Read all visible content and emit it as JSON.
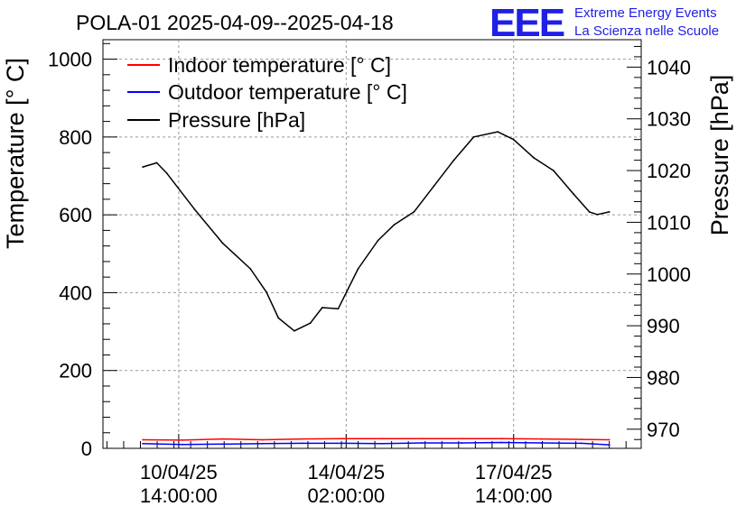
{
  "header": {
    "title": "POLA-01 2025-04-09--2025-04-18",
    "logo_text": "EEE",
    "logo_line1": "Extreme Energy Events",
    "logo_line2": "La Scienza nelle Scuole",
    "logo_color": "#1f1fe6"
  },
  "chart_data": {
    "type": "line",
    "title": "POLA-01 2025-04-09--2025-04-18",
    "xlabel": "",
    "ylabel": "Temperature [° C]",
    "y2label": "Pressure [hPa]",
    "x_ticks": [
      {
        "label_date": "10/04/25",
        "label_time": "14:00:00",
        "t": 38
      },
      {
        "label_date": "14/04/25",
        "label_time": "02:00:00",
        "t": 122
      },
      {
        "label_date": "17/04/25",
        "label_time": "14:00:00",
        "t": 206
      }
    ],
    "xlim": [
      0,
      270
    ],
    "ylim": [
      0,
      1050
    ],
    "y_ticks": [
      0,
      200,
      400,
      600,
      800,
      1000
    ],
    "y2lim": [
      966.3,
      1045.3
    ],
    "y2_ticks": [
      970,
      980,
      990,
      1000,
      1010,
      1020,
      1030,
      1040
    ],
    "grid": true,
    "legend_position": "top-left",
    "series": [
      {
        "name": "Indoor temperature [° C]",
        "axis": "left",
        "color": "#ff0000",
        "t": [
          20,
          40,
          60,
          80,
          100,
          120,
          140,
          160,
          180,
          200,
          220,
          240,
          254
        ],
        "values": [
          22,
          21,
          24,
          22,
          24,
          25,
          25,
          25,
          25,
          25,
          24,
          23,
          22
        ]
      },
      {
        "name": "Outdoor temperature [° C]",
        "axis": "left",
        "color": "#0000ff",
        "t": [
          20,
          40,
          60,
          80,
          100,
          120,
          140,
          160,
          180,
          200,
          220,
          240,
          254
        ],
        "values": [
          12,
          10,
          11,
          12,
          13,
          13,
          12,
          14,
          14,
          15,
          14,
          13,
          9
        ]
      },
      {
        "name": "Pressure [hPa]",
        "axis": "right",
        "color": "#000000",
        "t": [
          20,
          27,
          32,
          46,
          60,
          74,
          82,
          88,
          96,
          104,
          110,
          118,
          128,
          138,
          146,
          156,
          166,
          176,
          186,
          198,
          206,
          216,
          226,
          236,
          244,
          248,
          254
        ],
        "values": [
          1020.7,
          1021.5,
          1019.5,
          1012.5,
          1006.0,
          1001.0,
          996.5,
          991.5,
          989.0,
          990.5,
          993.5,
          993.3,
          1001.0,
          1006.5,
          1009.5,
          1012.0,
          1017.0,
          1022.0,
          1026.5,
          1027.5,
          1026.0,
          1022.5,
          1020.0,
          1015.5,
          1012.0,
          1011.5,
          1012.0
        ]
      }
    ]
  }
}
